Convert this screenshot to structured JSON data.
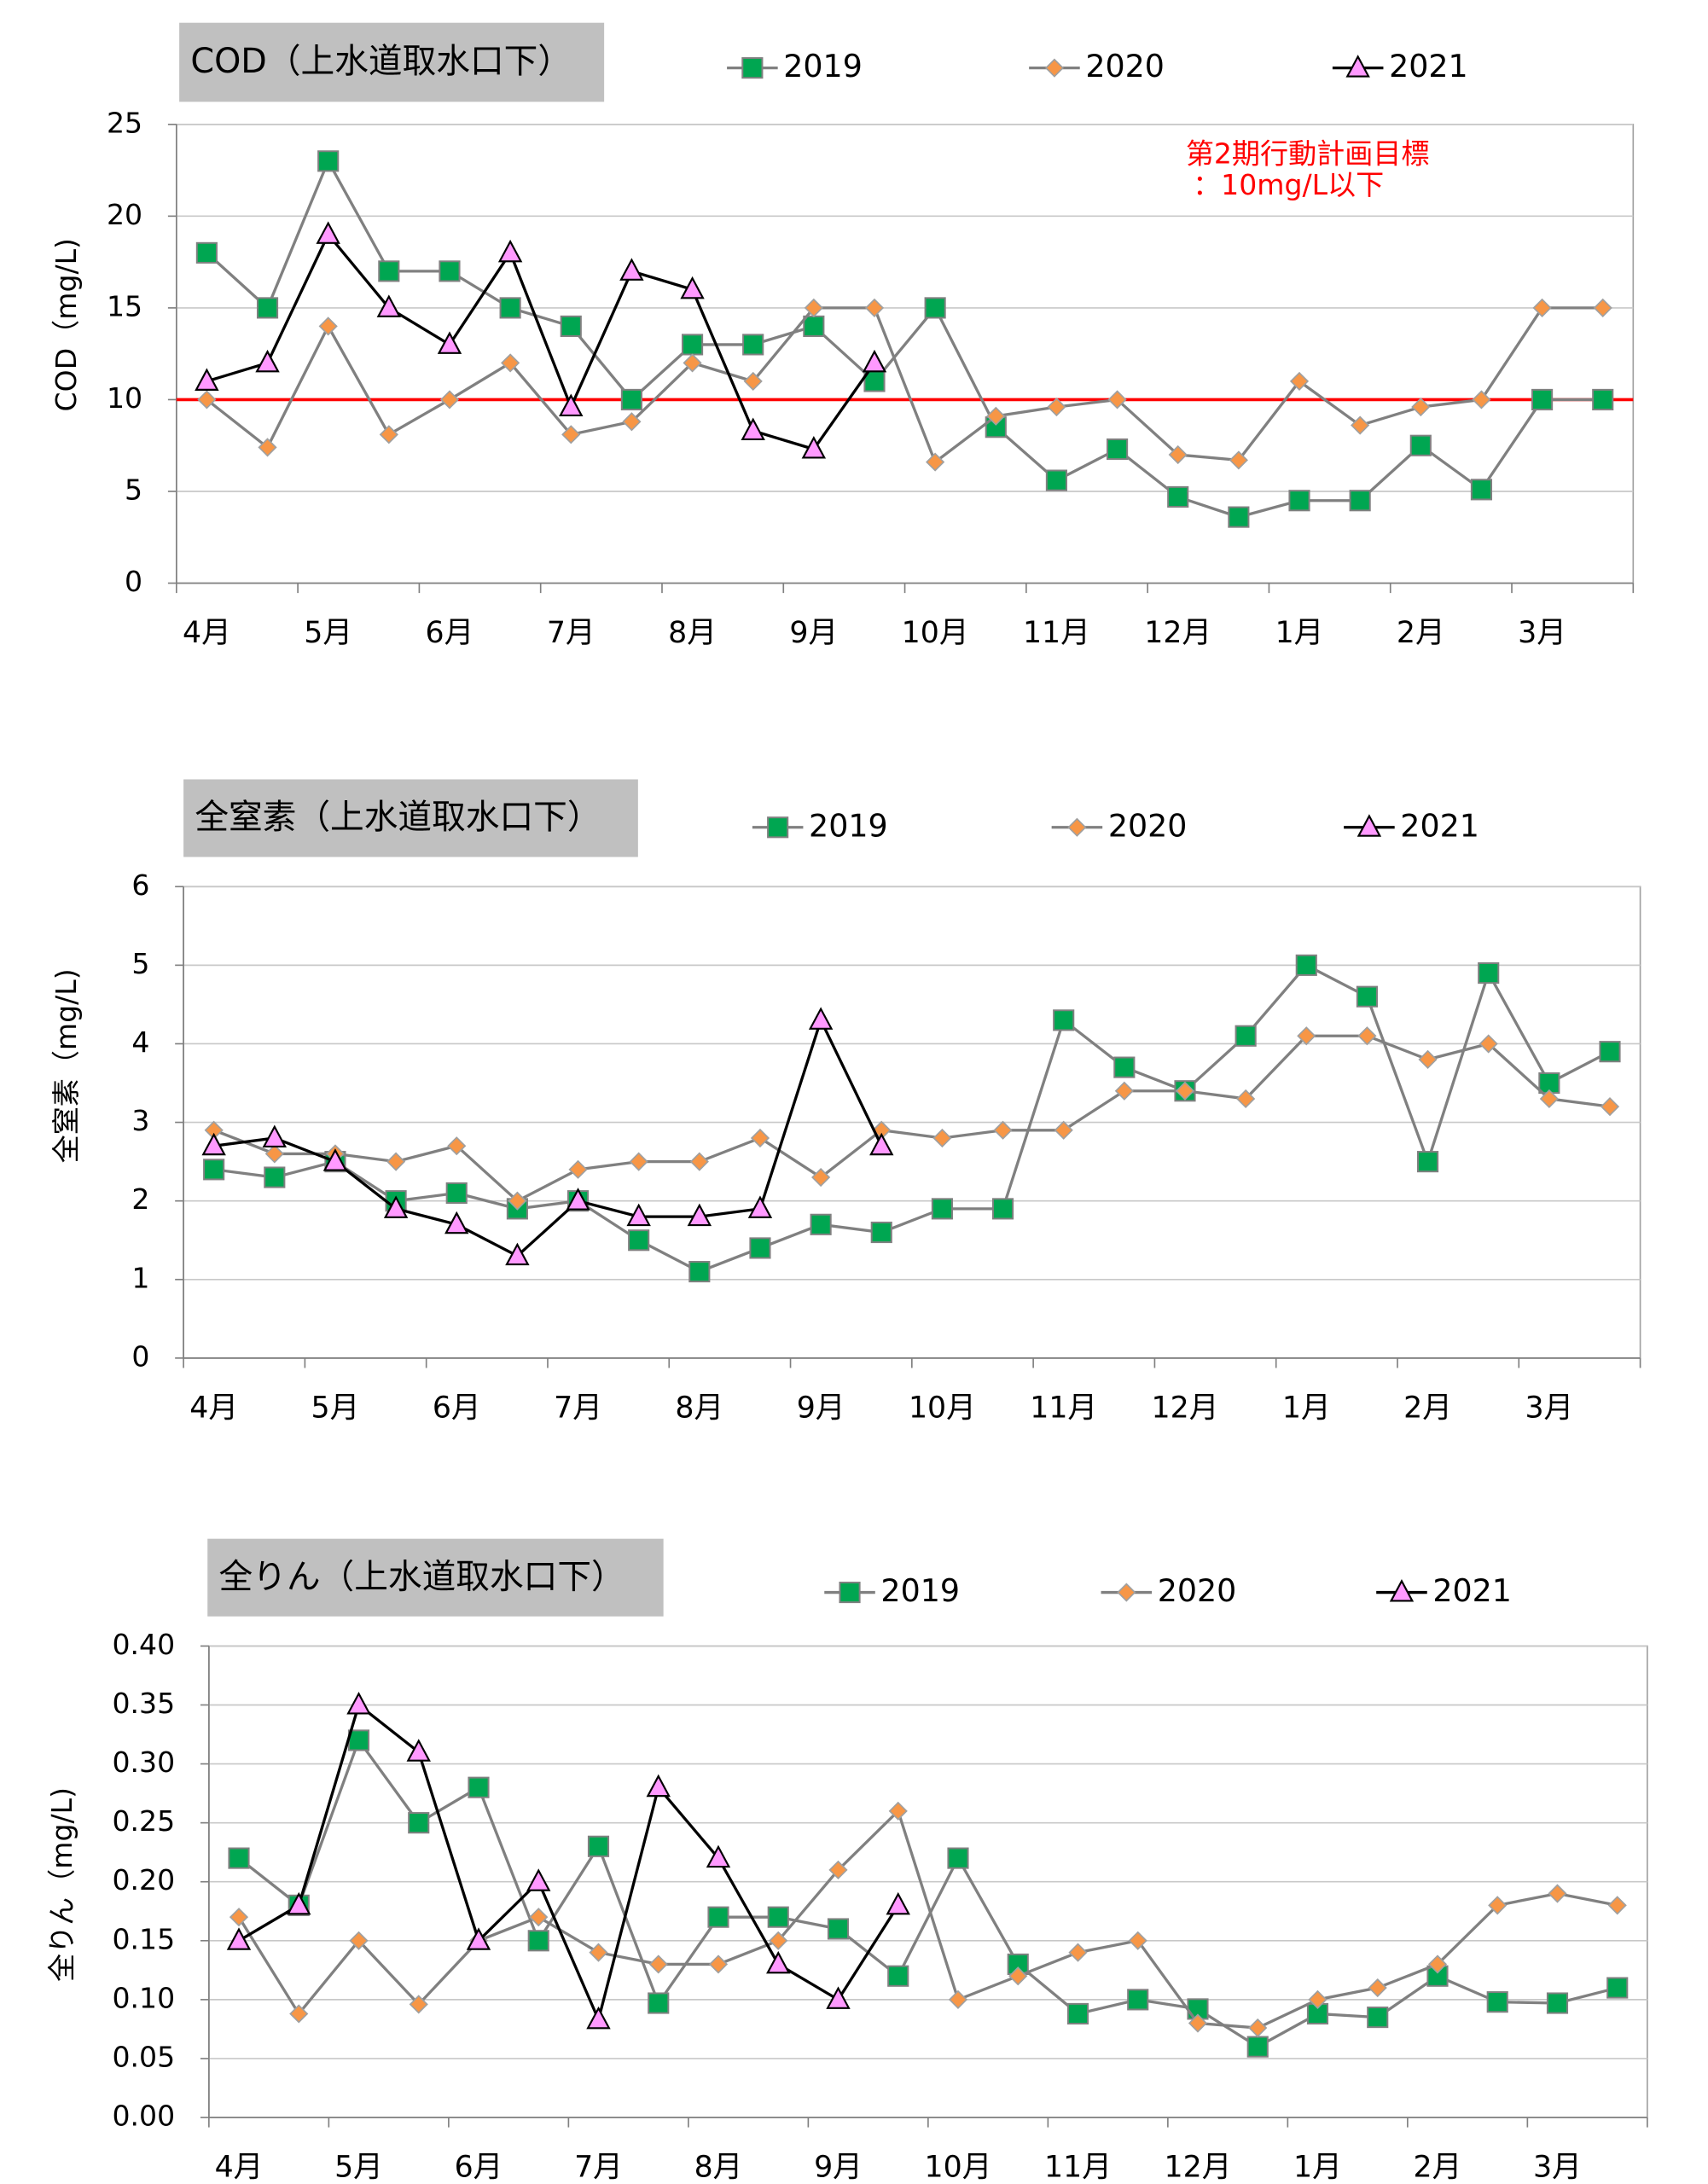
{
  "chart_data": [
    {
      "type": "line",
      "title": "COD（上水道取水口下）",
      "y_label": "COD（mg/L)",
      "categories": [
        "4月",
        null,
        "5月",
        null,
        "6月",
        null,
        "7月",
        null,
        "8月",
        null,
        "9月",
        null,
        "10月",
        null,
        "11月",
        null,
        "12月",
        null,
        "1月",
        null,
        "2月",
        null,
        "3月",
        null
      ],
      "ylim": [
        0,
        25
      ],
      "yticks": [
        0,
        5,
        10,
        15,
        20,
        25
      ],
      "grid": true,
      "legend": "top",
      "reference_line": {
        "value": 10,
        "color": "#ff0000"
      },
      "annotation": [
        "第2期行動計画目標",
        "：10mg/L以下"
      ],
      "annotation_color": "#ff0000",
      "series": [
        {
          "name": "2019",
          "color": "#00a651",
          "line_color": "#808080",
          "marker": "square",
          "values": [
            18,
            15,
            23,
            17,
            17,
            15,
            14,
            10,
            13,
            13,
            14,
            11,
            15,
            8.5,
            5.6,
            7.3,
            4.7,
            3.6,
            4.5,
            4.5,
            7.5,
            5.1,
            10,
            10
          ]
        },
        {
          "name": "2020",
          "color": "#f79646",
          "line_color": "#808080",
          "marker": "diamond",
          "values": [
            10,
            7.4,
            14,
            8.1,
            10,
            12,
            8.1,
            8.8,
            12,
            11,
            15,
            15,
            6.6,
            9.1,
            9.6,
            10,
            7,
            6.7,
            11,
            8.6,
            9.6,
            10,
            15,
            15
          ]
        },
        {
          "name": "2021",
          "color": "#ff99ff",
          "line_color": "#000000",
          "marker": "triangle",
          "values": [
            11,
            12,
            19,
            15,
            13,
            18,
            9.6,
            17,
            16,
            8.3,
            7.3,
            12,
            null,
            null,
            null,
            null,
            null,
            null,
            null,
            null,
            null,
            null,
            null,
            null
          ]
        }
      ]
    },
    {
      "type": "line",
      "title": "全窒素（上水道取水口下）",
      "y_label": "全窒素（mg/L)",
      "categories": [
        "4月",
        null,
        "5月",
        null,
        "6月",
        null,
        "7月",
        null,
        "8月",
        null,
        "9月",
        null,
        "10月",
        null,
        "11月",
        null,
        "12月",
        null,
        "1月",
        null,
        "2月",
        null,
        "3月",
        null
      ],
      "ylim": [
        0,
        6
      ],
      "yticks": [
        0,
        1,
        2,
        3,
        4,
        5,
        6
      ],
      "grid": true,
      "legend": "top",
      "series": [
        {
          "name": "2019",
          "color": "#00a651",
          "line_color": "#808080",
          "marker": "square",
          "values": [
            2.4,
            2.3,
            2.5,
            2.0,
            2.1,
            1.9,
            2.0,
            1.5,
            1.1,
            1.4,
            1.7,
            1.6,
            1.9,
            1.9,
            4.3,
            3.7,
            3.4,
            4.1,
            5.0,
            4.6,
            2.5,
            4.9,
            3.5,
            3.9
          ]
        },
        {
          "name": "2020",
          "color": "#f79646",
          "line_color": "#808080",
          "marker": "diamond",
          "values": [
            2.9,
            2.6,
            2.6,
            2.5,
            2.7,
            2.0,
            2.4,
            2.5,
            2.5,
            2.8,
            2.3,
            2.9,
            2.8,
            2.9,
            2.9,
            3.4,
            3.4,
            3.3,
            4.1,
            4.1,
            3.8,
            4.0,
            3.3,
            3.2
          ]
        },
        {
          "name": "2021",
          "color": "#ff99ff",
          "line_color": "#000000",
          "marker": "triangle",
          "values": [
            2.7,
            2.8,
            2.5,
            1.9,
            1.7,
            1.3,
            2.0,
            1.8,
            1.8,
            1.9,
            4.3,
            2.7,
            null,
            null,
            null,
            null,
            null,
            null,
            null,
            null,
            null,
            null,
            null,
            null
          ]
        }
      ]
    },
    {
      "type": "line",
      "title": "全りん（上水道取水口下）",
      "y_label": "全りん（mg/L)",
      "categories": [
        "4月",
        null,
        "5月",
        null,
        "6月",
        null,
        "7月",
        null,
        "8月",
        null,
        "9月",
        null,
        "10月",
        null,
        "11月",
        null,
        "12月",
        null,
        "1月",
        null,
        "2月",
        null,
        "3月",
        null
      ],
      "ylim": [
        0,
        0.4
      ],
      "yticks": [
        {
          "value": 0,
          "label": "0.00"
        },
        {
          "value": 0.05,
          "label": "0.05"
        },
        {
          "value": 0.1,
          "label": "0.10"
        },
        {
          "value": 0.15,
          "label": "0.15"
        },
        {
          "value": 0.2,
          "label": "0.20"
        },
        {
          "value": 0.25,
          "label": "0.25"
        },
        {
          "value": 0.3,
          "label": "0.30"
        },
        {
          "value": 0.35,
          "label": "0.35"
        },
        {
          "value": 0.4,
          "label": "0.40"
        }
      ],
      "grid": true,
      "legend": "top",
      "series": [
        {
          "name": "2019",
          "color": "#00a651",
          "line_color": "#808080",
          "marker": "square",
          "values": [
            0.22,
            0.18,
            0.32,
            0.25,
            0.28,
            0.15,
            0.23,
            0.097,
            0.17,
            0.17,
            0.16,
            0.12,
            0.22,
            0.13,
            0.088,
            0.1,
            0.092,
            0.06,
            0.088,
            0.085,
            0.12,
            0.098,
            0.097,
            0.11
          ]
        },
        {
          "name": "2020",
          "color": "#f79646",
          "line_color": "#808080",
          "marker": "diamond",
          "values": [
            0.17,
            0.088,
            0.15,
            0.096,
            0.15,
            0.17,
            0.14,
            0.13,
            0.13,
            0.15,
            0.21,
            0.26,
            0.1,
            0.12,
            0.14,
            0.15,
            0.08,
            0.076,
            0.1,
            0.11,
            0.13,
            0.18,
            0.19,
            0.18
          ]
        },
        {
          "name": "2021",
          "color": "#ff99ff",
          "line_color": "#000000",
          "marker": "triangle",
          "values": [
            0.15,
            0.18,
            0.35,
            0.31,
            0.15,
            0.2,
            0.083,
            0.28,
            0.22,
            0.13,
            0.1,
            0.18,
            null,
            null,
            null,
            null,
            null,
            null,
            null,
            null,
            null,
            null,
            null,
            null
          ]
        }
      ]
    }
  ]
}
